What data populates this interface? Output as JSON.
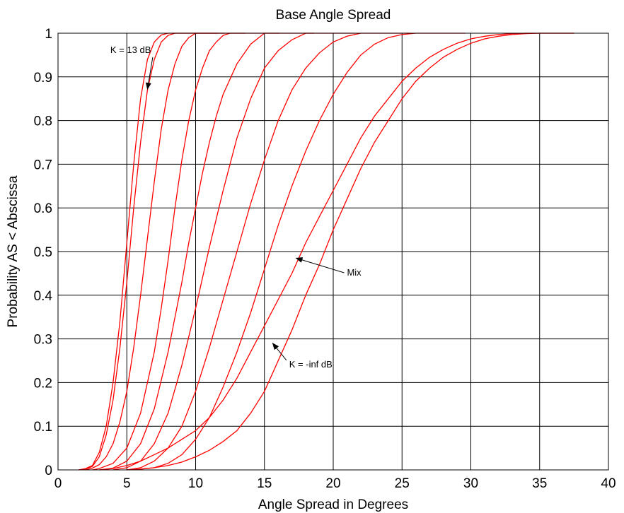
{
  "chart_data": {
    "type": "line",
    "title": "Base Angle Spread",
    "xlabel": "Angle Spread in Degrees",
    "ylabel": "Probability AS < Abscissa",
    "xlim": [
      0,
      40
    ],
    "ylim": [
      0,
      1
    ],
    "xticks": [
      0,
      5,
      10,
      15,
      20,
      25,
      30,
      35,
      40
    ],
    "yticks": [
      0,
      0.1,
      0.2,
      0.3,
      0.4,
      0.5,
      0.6,
      0.7,
      0.8,
      0.9,
      1
    ],
    "grid": true,
    "series_color": "#ff0000",
    "series": [
      {
        "x": [
          1.5,
          2,
          2.5,
          3,
          3.5,
          4,
          4.5,
          5,
          5.5,
          6,
          6.5,
          7,
          7.5,
          8
        ],
        "values": [
          0,
          0.003,
          0.01,
          0.04,
          0.1,
          0.2,
          0.34,
          0.52,
          0.7,
          0.85,
          0.94,
          0.98,
          0.996,
          1
        ]
      },
      {
        "x": [
          1.5,
          2,
          2.5,
          3,
          3.5,
          4,
          4.5,
          5,
          5.5,
          6,
          6.5,
          7,
          7.5,
          8,
          8.5
        ],
        "values": [
          0,
          0.002,
          0.008,
          0.03,
          0.08,
          0.16,
          0.28,
          0.43,
          0.6,
          0.75,
          0.87,
          0.94,
          0.98,
          0.995,
          1
        ]
      },
      {
        "x": [
          2,
          2.5,
          3,
          3.5,
          4,
          4.5,
          5,
          5.5,
          6,
          6.5,
          7,
          7.5,
          8,
          8.5,
          9,
          9.5,
          10
        ],
        "values": [
          0,
          0.004,
          0.012,
          0.03,
          0.06,
          0.11,
          0.18,
          0.28,
          0.4,
          0.53,
          0.66,
          0.78,
          0.87,
          0.93,
          0.97,
          0.99,
          1
        ]
      },
      {
        "x": [
          2.5,
          3,
          4,
          5,
          6,
          7,
          7.5,
          8,
          8.5,
          9,
          9.5,
          10,
          10.5,
          11,
          11.5,
          12,
          12.5
        ],
        "values": [
          0,
          0.003,
          0.015,
          0.05,
          0.13,
          0.27,
          0.37,
          0.48,
          0.6,
          0.71,
          0.8,
          0.87,
          0.92,
          0.96,
          0.98,
          0.995,
          1
        ]
      },
      {
        "x": [
          3,
          4,
          5,
          6,
          7,
          8,
          9,
          9.5,
          10,
          10.5,
          11,
          11.5,
          12,
          13,
          14,
          15
        ],
        "values": [
          0,
          0.004,
          0.02,
          0.06,
          0.14,
          0.27,
          0.43,
          0.52,
          0.6,
          0.68,
          0.75,
          0.81,
          0.86,
          0.93,
          0.975,
          1
        ]
      },
      {
        "x": [
          4,
          5,
          6,
          7,
          8,
          9,
          10,
          11,
          12,
          13,
          14,
          15,
          16,
          17,
          18
        ],
        "values": [
          0,
          0.005,
          0.02,
          0.06,
          0.13,
          0.24,
          0.37,
          0.51,
          0.64,
          0.76,
          0.85,
          0.92,
          0.96,
          0.985,
          1
        ]
      },
      {
        "x": [
          5,
          6,
          7,
          8,
          9,
          10,
          11,
          12,
          13,
          14,
          15,
          16,
          17,
          18,
          19,
          20,
          21,
          22
        ],
        "values": [
          0,
          0.005,
          0.02,
          0.05,
          0.1,
          0.18,
          0.28,
          0.39,
          0.5,
          0.61,
          0.71,
          0.8,
          0.87,
          0.92,
          0.955,
          0.98,
          0.993,
          1
        ]
      },
      {
        "x": [
          5.5,
          7,
          8,
          9,
          10,
          11,
          12,
          13,
          14,
          15,
          16,
          17,
          18,
          19,
          20,
          21,
          22,
          23,
          24,
          25,
          26
        ],
        "values": [
          0,
          0.005,
          0.015,
          0.035,
          0.07,
          0.12,
          0.19,
          0.27,
          0.36,
          0.46,
          0.56,
          0.65,
          0.73,
          0.8,
          0.86,
          0.91,
          0.95,
          0.975,
          0.99,
          0.997,
          1
        ]
      },
      {
        "x": [
          3,
          4,
          5,
          6,
          7,
          8,
          9,
          10,
          11,
          12,
          13,
          14,
          15,
          16,
          17,
          18,
          19,
          20,
          21,
          22,
          23,
          24,
          25,
          26,
          27,
          28,
          29,
          30,
          31,
          32,
          33,
          34
        ],
        "values": [
          0,
          0.003,
          0.01,
          0.02,
          0.035,
          0.05,
          0.07,
          0.09,
          0.12,
          0.16,
          0.21,
          0.27,
          0.33,
          0.39,
          0.45,
          0.52,
          0.58,
          0.64,
          0.7,
          0.76,
          0.81,
          0.85,
          0.89,
          0.92,
          0.945,
          0.963,
          0.977,
          0.987,
          0.993,
          0.997,
          0.999,
          1
        ]
      },
      {
        "x": [
          5,
          6,
          7,
          8,
          9,
          10,
          11,
          12,
          13,
          14,
          15,
          16,
          17,
          18,
          19,
          20,
          21,
          22,
          23,
          24,
          25,
          26,
          27,
          28,
          29,
          30,
          31,
          32,
          33,
          34,
          35,
          36
        ],
        "values": [
          0,
          0.002,
          0.005,
          0.01,
          0.018,
          0.03,
          0.045,
          0.065,
          0.09,
          0.13,
          0.18,
          0.25,
          0.32,
          0.4,
          0.47,
          0.55,
          0.62,
          0.69,
          0.75,
          0.8,
          0.85,
          0.89,
          0.92,
          0.945,
          0.963,
          0.977,
          0.987,
          0.993,
          0.997,
          0.999,
          1,
          1
        ]
      }
    ],
    "annotations": [
      {
        "text": "K = 13 dB",
        "x": 3.8,
        "y": 0.955,
        "arrow_to": [
          6.5,
          0.872
        ]
      },
      {
        "text": "Mix",
        "x": 21,
        "y": 0.445,
        "arrow_to": [
          17.3,
          0.485
        ]
      },
      {
        "text": "K = -inf dB",
        "x": 16.8,
        "y": 0.235,
        "arrow_to": [
          15.6,
          0.29
        ]
      }
    ]
  }
}
